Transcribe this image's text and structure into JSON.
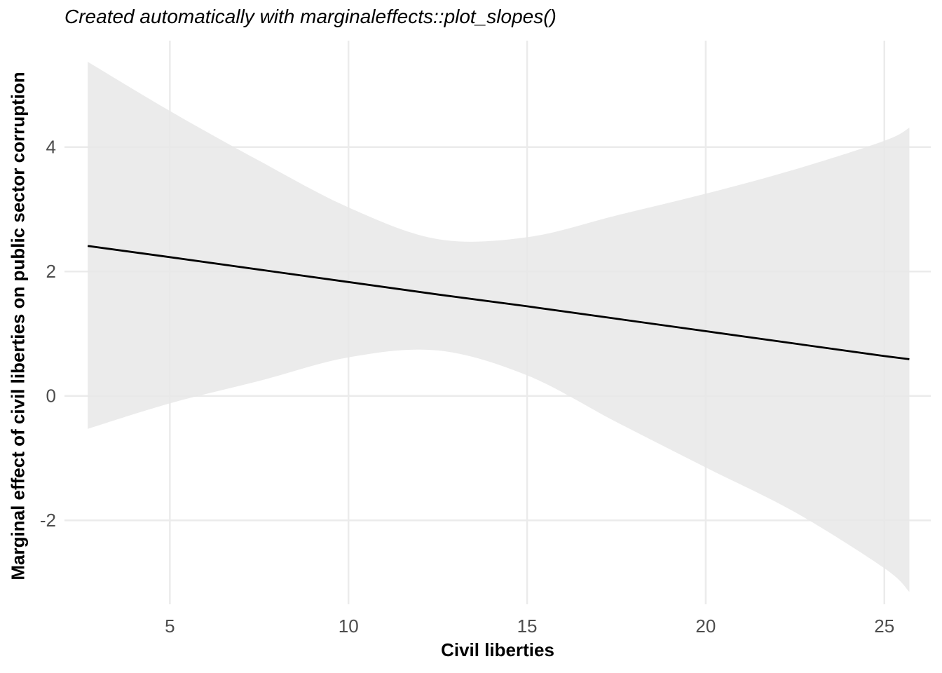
{
  "chart_data": {
    "type": "line",
    "title": "Created automatically with marginaleffects::plot_slopes()",
    "xlabel": "Civil liberties",
    "ylabel": "Marginal effect of civil liberties on public sector corruption",
    "xlim": [
      2.05,
      26.3
    ],
    "ylim": [
      -3.35,
      5.8
    ],
    "xticks": [
      5,
      10,
      15,
      20,
      25
    ],
    "yticks": [
      -2,
      0,
      2,
      4
    ],
    "xtick_labels": [
      "5",
      "10",
      "15",
      "20",
      "25"
    ],
    "ytick_labels": [
      "-2",
      "0",
      "2",
      "4"
    ],
    "grid": true,
    "series": [
      {
        "x": [
          2.7,
          5,
          7.5,
          10,
          12.5,
          15,
          17.5,
          20,
          22.5,
          25,
          25.7
        ],
        "estimate": [
          2.41,
          2.23,
          2.03,
          1.83,
          1.63,
          1.44,
          1.24,
          1.04,
          0.84,
          0.64,
          0.59
        ],
        "conf_low": [
          -0.53,
          -0.12,
          0.24,
          0.62,
          0.73,
          0.33,
          -0.42,
          -1.15,
          -1.87,
          -2.77,
          -3.15
        ],
        "conf_high": [
          5.37,
          4.58,
          3.78,
          3.03,
          2.52,
          2.55,
          2.9,
          3.25,
          3.64,
          4.1,
          4.31
        ]
      }
    ],
    "colors": {
      "line": "#000000",
      "ribbon": "#e8e8e8",
      "grid": "#ebebeb",
      "tick_text": "#4d4d4d"
    }
  }
}
